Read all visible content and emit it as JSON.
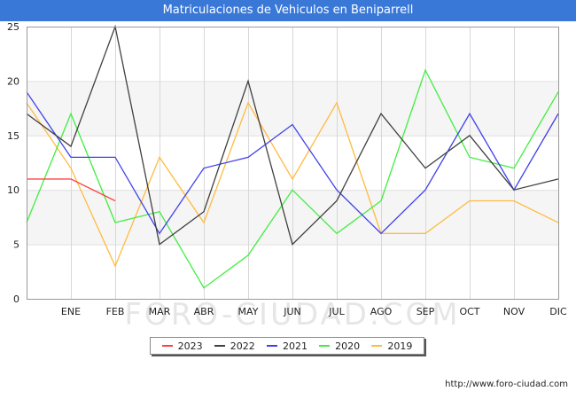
{
  "title": "Matriculaciones de Vehiculos en Beniparrell",
  "watermark": "FORO-CIUDAD.COM",
  "footer_url": "http://www.foro-ciudad.com",
  "chart_data": {
    "type": "line",
    "categories": [
      "",
      "ENE",
      "FEB",
      "MAR",
      "ABR",
      "MAY",
      "JUN",
      "JUL",
      "AGO",
      "SEP",
      "OCT",
      "NOV",
      "DIC"
    ],
    "y_ticks": [
      "0",
      "5",
      "10",
      "15",
      "20",
      "25"
    ],
    "ylim": [
      0,
      25
    ],
    "grid": true,
    "legend_position": "bottom-center",
    "series": [
      {
        "name": "2023",
        "color": "#ff4040",
        "values": [
          11,
          11,
          9,
          null,
          null,
          null,
          null,
          null,
          null,
          null,
          null,
          null,
          null
        ]
      },
      {
        "name": "2022",
        "color": "#404040",
        "values": [
          17,
          14,
          25,
          5,
          8,
          20,
          5,
          9,
          17,
          12,
          15,
          10,
          11
        ]
      },
      {
        "name": "2021",
        "color": "#4040ee",
        "values": [
          19,
          13,
          13,
          6,
          12,
          13,
          16,
          10,
          6,
          10,
          17,
          10,
          17
        ]
      },
      {
        "name": "2020",
        "color": "#40ee40",
        "values": [
          7,
          17,
          7,
          8,
          1,
          4,
          10,
          6,
          9,
          21,
          13,
          12,
          19
        ]
      },
      {
        "name": "2019",
        "color": "#ffbb40",
        "values": [
          18,
          12,
          3,
          13,
          7,
          18,
          11,
          18,
          6,
          6,
          9,
          9,
          7
        ]
      }
    ]
  }
}
